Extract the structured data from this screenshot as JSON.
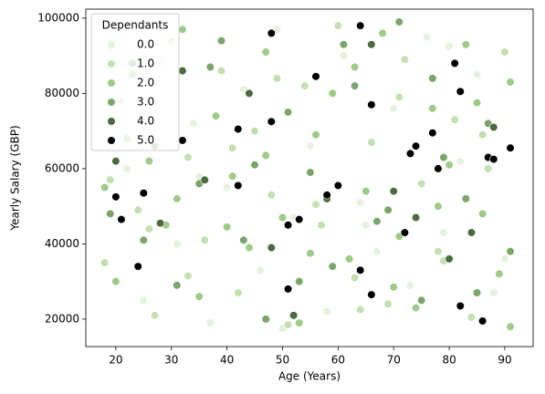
{
  "chart_data": {
    "type": "scatter",
    "xlabel": "Age (Years)",
    "ylabel": "Yearly Salary (GBP)",
    "legend_title": "Dependants",
    "legend": "upper left",
    "xlim": [
      14.6,
      95.1
    ],
    "ylim": [
      12700,
      102400
    ],
    "xticks": [
      20,
      30,
      40,
      50,
      60,
      70,
      80,
      90
    ],
    "yticks": [
      20000,
      40000,
      60000,
      80000,
      100000
    ],
    "series": [
      {
        "name": "0.0",
        "color": "#e6f2df",
        "x": [
          19,
          22,
          25,
          28,
          31,
          34,
          37,
          40,
          43,
          46,
          49,
          52,
          55,
          58,
          61,
          64,
          67,
          70,
          73,
          76,
          79,
          82,
          85,
          88,
          90,
          20,
          35,
          50,
          65,
          80
        ],
        "values": [
          92000,
          60000,
          25000,
          88000,
          40000,
          72000,
          19000,
          55000,
          81000,
          33000,
          97000,
          47000,
          66000,
          22000,
          90000,
          51000,
          38000,
          76000,
          29000,
          95000,
          43000,
          62000,
          85000,
          27000,
          36000,
          74000,
          58000,
          17500,
          45000,
          92500
        ]
      },
      {
        "name": "1.0",
        "color": "#c4e0b3",
        "x": [
          18,
          21,
          24,
          27,
          30,
          33,
          36,
          39,
          42,
          45,
          48,
          51,
          54,
          57,
          60,
          63,
          66,
          69,
          72,
          75,
          78,
          81,
          84,
          87,
          90,
          19,
          26,
          33,
          41,
          49,
          56,
          64,
          71,
          79,
          86
        ],
        "values": [
          35000,
          78000,
          49000,
          21000,
          94000,
          63000,
          41000,
          86000,
          27000,
          70000,
          53000,
          18500,
          82000,
          45000,
          98000,
          31000,
          67000,
          24000,
          89000,
          56000,
          38000,
          73000,
          20500,
          60000,
          91000,
          57000,
          44000,
          31500,
          65500,
          84000,
          50500,
          22500,
          79000,
          35500,
          69000
        ]
      },
      {
        "name": "2.0",
        "color": "#9fcb88",
        "x": [
          18,
          20,
          23,
          26,
          29,
          32,
          35,
          38,
          41,
          44,
          47,
          50,
          53,
          56,
          59,
          62,
          65,
          68,
          71,
          74,
          77,
          80,
          83,
          86,
          89,
          91,
          22,
          31,
          40,
          47,
          55,
          63,
          70,
          78,
          85,
          91
        ],
        "values": [
          55000,
          30000,
          85000,
          62000,
          45000,
          97000,
          26000,
          74000,
          58000,
          39000,
          91000,
          47000,
          19000,
          69000,
          80000,
          36000,
          54000,
          96000,
          42000,
          23000,
          76000,
          61000,
          93000,
          48000,
          32000,
          18000,
          68000,
          52000,
          44500,
          63500,
          37500,
          87000,
          28500,
          50000,
          77500,
          83000
        ]
      },
      {
        "name": "3.0",
        "color": "#7ba56a",
        "x": [
          19,
          23,
          27,
          31,
          35,
          39,
          43,
          47,
          51,
          55,
          59,
          63,
          67,
          71,
          75,
          79,
          83,
          87,
          91,
          25,
          37,
          45,
          53,
          61,
          69,
          77,
          85
        ],
        "values": [
          48000,
          88000,
          66000,
          29000,
          56000,
          94000,
          41000,
          20000,
          75000,
          59000,
          34000,
          82000,
          46000,
          99000,
          25000,
          63000,
          52000,
          72000,
          38000,
          41000,
          87000,
          61000,
          30000,
          93000,
          49000,
          84000,
          27000
        ]
      },
      {
        "name": "4.0",
        "color": "#4b6a3f",
        "x": [
          20,
          28,
          36,
          44,
          52,
          58,
          66,
          74,
          80,
          88,
          32,
          48,
          70,
          84
        ],
        "values": [
          62000,
          45500,
          57000,
          80000,
          21000,
          52000,
          93000,
          47000,
          36000,
          71000,
          86000,
          39000,
          54000,
          43000
        ]
      },
      {
        "name": "5.0",
        "color": "#000000",
        "x": [
          20,
          21,
          24,
          25,
          32,
          42,
          42,
          48,
          48,
          51,
          51,
          53,
          56,
          58,
          60,
          64,
          64,
          66,
          66,
          72,
          73,
          74,
          77,
          78,
          81,
          82,
          82,
          86,
          87,
          88,
          91
        ],
        "values": [
          52500,
          46500,
          34000,
          53500,
          67500,
          70500,
          55500,
          72500,
          96000,
          45000,
          28000,
          46500,
          84500,
          53000,
          55500,
          98000,
          33000,
          77000,
          26500,
          43000,
          64000,
          66000,
          69500,
          60000,
          88000,
          80500,
          23500,
          19500,
          63000,
          62500,
          65500
        ]
      }
    ]
  }
}
